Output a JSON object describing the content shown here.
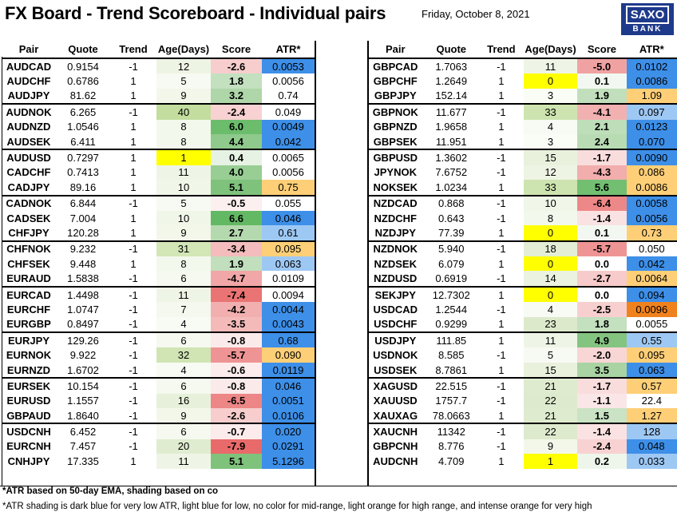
{
  "header": {
    "title": "FX Board - Trend Scoreboard - Individual pairs",
    "date": "Friday, October 8, 2021",
    "logo_line1": "SAXO",
    "logo_line2": "BANK"
  },
  "columns": [
    "Pair",
    "Quote",
    "Trend",
    "Age(Days)",
    "Score",
    "ATR*"
  ],
  "colors": {
    "age_yellow": "#ffff00",
    "atr_dark_blue": "#3d8fe8",
    "atr_light_blue": "#9ec8f4",
    "atr_light_orange": "#ffcf77",
    "atr_intense_orange": "#f0821d"
  },
  "left_table": [
    {
      "pair": "AUDCAD",
      "quote": "0.9154",
      "trend": "-1",
      "age": "12",
      "score": "-2.6",
      "atr": "0.0053",
      "age_shade": "#eef4e4",
      "score_shade": "#f7cdcd",
      "atr_shade": "#3d8fe8"
    },
    {
      "pair": "AUDCHF",
      "quote": "0.6786",
      "trend": "1",
      "age": "5",
      "score": "1.8",
      "atr": "0.0056",
      "age_shade": "#f7faf2",
      "score_shade": "#c3e0bf",
      "atr_shade": ""
    },
    {
      "pair": "AUDJPY",
      "quote": "81.62",
      "trend": "1",
      "age": "9",
      "score": "3.2",
      "atr": "0.74",
      "age_shade": "#f2f7ea",
      "score_shade": "#aed6a8",
      "atr_shade": ""
    },
    {
      "pair": "AUDNOK",
      "quote": "6.265",
      "trend": "-1",
      "age": "40",
      "score": "-2.4",
      "atr": "0.049",
      "age_shade": "#c2dd9e",
      "score_shade": "#f8d2d2",
      "atr_shade": ""
    },
    {
      "pair": "AUDNZD",
      "quote": "1.0546",
      "trend": "1",
      "age": "8",
      "score": "6.0",
      "atr": "0.0049",
      "age_shade": "#f3f8ec",
      "score_shade": "#6bbd6b",
      "atr_shade": "#3d8fe8"
    },
    {
      "pair": "AUDSEK",
      "quote": "6.411",
      "trend": "1",
      "age": "8",
      "score": "4.4",
      "atr": "0.042",
      "age_shade": "#f3f8ec",
      "score_shade": "#8fc98c",
      "atr_shade": "#3d8fe8"
    },
    {
      "pair": "AUDUSD",
      "quote": "0.7297",
      "trend": "1",
      "age": "1",
      "score": "0.4",
      "atr": "0.0065",
      "age_shade": "#ffff00",
      "score_shade": "#e6f2e3",
      "atr_shade": ""
    },
    {
      "pair": "CADCHF",
      "quote": "0.7413",
      "trend": "1",
      "age": "11",
      "score": "4.0",
      "atr": "0.0056",
      "age_shade": "#eff5e6",
      "score_shade": "#98ce94",
      "atr_shade": ""
    },
    {
      "pair": "CADJPY",
      "quote": "89.16",
      "trend": "1",
      "age": "10",
      "score": "5.1",
      "atr": "0.75",
      "age_shade": "#f0f6e8",
      "score_shade": "#7fc27c",
      "atr_shade": "#ffcf77"
    },
    {
      "pair": "CADNOK",
      "quote": "6.844",
      "trend": "-1",
      "age": "5",
      "score": "-0.5",
      "atr": "0.055",
      "age_shade": "#f7faf2",
      "score_shade": "#fcefef",
      "atr_shade": ""
    },
    {
      "pair": "CADSEK",
      "quote": "7.004",
      "trend": "1",
      "age": "10",
      "score": "6.6",
      "atr": "0.046",
      "age_shade": "#f0f6e8",
      "score_shade": "#63b963",
      "atr_shade": "#3d8fe8"
    },
    {
      "pair": "CHFJPY",
      "quote": "120.28",
      "trend": "1",
      "age": "9",
      "score": "2.7",
      "atr": "0.61",
      "age_shade": "#f2f7ea",
      "score_shade": "#b4d9ae",
      "atr_shade": "#9ec8f4"
    },
    {
      "pair": "CHFNOK",
      "quote": "9.232",
      "trend": "-1",
      "age": "31",
      "score": "-3.4",
      "atr": "0.095",
      "age_shade": "#d2e6b6",
      "score_shade": "#f4bcbc",
      "atr_shade": "#ffcf77"
    },
    {
      "pair": "CHFSEK",
      "quote": "9.448",
      "trend": "1",
      "age": "8",
      "score": "1.9",
      "atr": "0.063",
      "age_shade": "#f3f8ec",
      "score_shade": "#c1dfbc",
      "atr_shade": "#9ec8f4"
    },
    {
      "pair": "EURAUD",
      "quote": "1.5838",
      "trend": "-1",
      "age": "6",
      "score": "-4.7",
      "atr": "0.0109",
      "age_shade": "#f5f9ef",
      "score_shade": "#f1a7a7",
      "atr_shade": ""
    },
    {
      "pair": "EURCAD",
      "quote": "1.4498",
      "trend": "-1",
      "age": "11",
      "score": "-7.4",
      "atr": "0.0094",
      "age_shade": "#eff5e6",
      "score_shade": "#ea7474",
      "atr_shade": ""
    },
    {
      "pair": "EURCHF",
      "quote": "1.0747",
      "trend": "-1",
      "age": "7",
      "score": "-4.2",
      "atr": "0.0044",
      "age_shade": "#f4f8ee",
      "score_shade": "#f2afaf",
      "atr_shade": "#3d8fe8"
    },
    {
      "pair": "EURGBP",
      "quote": "0.8497",
      "trend": "-1",
      "age": "4",
      "score": "-3.5",
      "atr": "0.0043",
      "age_shade": "#f8fbf4",
      "score_shade": "#f4baba",
      "atr_shade": "#3d8fe8"
    },
    {
      "pair": "EURJPY",
      "quote": "129.26",
      "trend": "-1",
      "age": "6",
      "score": "-0.8",
      "atr": "0.68",
      "age_shade": "#f5f9ef",
      "score_shade": "#fbeaea",
      "atr_shade": "#3d8fe8"
    },
    {
      "pair": "EURNOK",
      "quote": "9.922",
      "trend": "-1",
      "age": "32",
      "score": "-5.7",
      "atr": "0.090",
      "age_shade": "#d0e5b3",
      "score_shade": "#ef9494",
      "atr_shade": "#ffcf77"
    },
    {
      "pair": "EURNZD",
      "quote": "1.6702",
      "trend": "-1",
      "age": "4",
      "score": "-0.6",
      "atr": "0.0119",
      "age_shade": "#f8fbf4",
      "score_shade": "#fcecec",
      "atr_shade": "#3d8fe8"
    },
    {
      "pair": "EURSEK",
      "quote": "10.154",
      "trend": "-1",
      "age": "6",
      "score": "-0.8",
      "atr": "0.046",
      "age_shade": "#f5f9ef",
      "score_shade": "#fbeaea",
      "atr_shade": "#3d8fe8"
    },
    {
      "pair": "EURUSD",
      "quote": "1.1557",
      "trend": "-1",
      "age": "16",
      "score": "-6.5",
      "atr": "0.0051",
      "age_shade": "#e7f0da",
      "score_shade": "#ed8686",
      "atr_shade": "#3d8fe8"
    },
    {
      "pair": "GBPAUD",
      "quote": "1.8640",
      "trend": "-1",
      "age": "9",
      "score": "-2.6",
      "atr": "0.0106",
      "age_shade": "#f2f7ea",
      "score_shade": "#f7cdcd",
      "atr_shade": "#3d8fe8"
    },
    {
      "pair": "USDCNH",
      "quote": "6.452",
      "trend": "-1",
      "age": "6",
      "score": "-0.7",
      "atr": "0.020",
      "age_shade": "#f5f9ef",
      "score_shade": "#fbebeb",
      "atr_shade": "#3d8fe8"
    },
    {
      "pair": "EURCNH",
      "quote": "7.457",
      "trend": "-1",
      "age": "20",
      "score": "-7.9",
      "atr": "0.0291",
      "age_shade": "#e0ecd0",
      "score_shade": "#e96a6a",
      "atr_shade": "#3d8fe8"
    },
    {
      "pair": "CNHJPY",
      "quote": "17.335",
      "trend": "1",
      "age": "11",
      "score": "5.1",
      "atr": "5.1296",
      "age_shade": "#eff5e6",
      "score_shade": "#7fc27c",
      "atr_shade": "#3d8fe8"
    }
  ],
  "right_table": [
    {
      "pair": "GBPCAD",
      "quote": "1.7063",
      "trend": "-1",
      "age": "11",
      "score": "-5.0",
      "atr": "0.0102",
      "age_shade": "#eff5e6",
      "score_shade": "#f0a2a2",
      "atr_shade": "#3d8fe8"
    },
    {
      "pair": "GBPCHF",
      "quote": "1.2649",
      "trend": "1",
      "age": "0",
      "score": "0.1",
      "atr": "0.0086",
      "age_shade": "#ffff00",
      "score_shade": "#f2f8f1",
      "atr_shade": "#3d8fe8"
    },
    {
      "pair": "GBPJPY",
      "quote": "152.14",
      "trend": "1",
      "age": "3",
      "score": "1.9",
      "atr": "1.09",
      "age_shade": "#fafcf6",
      "score_shade": "#c1dfbc",
      "atr_shade": "#ffcf77"
    },
    {
      "pair": "GBPNOK",
      "quote": "11.677",
      "trend": "-1",
      "age": "33",
      "score": "-4.1",
      "atr": "0.097",
      "age_shade": "#cee4b0",
      "score_shade": "#f2b1b1",
      "atr_shade": "#9ec8f4"
    },
    {
      "pair": "GBPNZD",
      "quote": "1.9658",
      "trend": "1",
      "age": "4",
      "score": "2.1",
      "atr": "0.0123",
      "age_shade": "#f8fbf4",
      "score_shade": "#bddeb8",
      "atr_shade": "#3d8fe8"
    },
    {
      "pair": "GBPSEK",
      "quote": "11.951",
      "trend": "1",
      "age": "3",
      "score": "2.4",
      "atr": "0.070",
      "age_shade": "#fafcf6",
      "score_shade": "#b8dbb3",
      "atr_shade": "#3d8fe8"
    },
    {
      "pair": "GBPUSD",
      "quote": "1.3602",
      "trend": "-1",
      "age": "15",
      "score": "-1.7",
      "atr": "0.0090",
      "age_shade": "#e9f1dd",
      "score_shade": "#f9dddd",
      "atr_shade": "#3d8fe8"
    },
    {
      "pair": "JPYNOK",
      "quote": "7.6752",
      "trend": "-1",
      "age": "12",
      "score": "-4.3",
      "atr": "0.086",
      "age_shade": "#eef4e4",
      "score_shade": "#f2adad",
      "atr_shade": "#ffcf77"
    },
    {
      "pair": "NOKSEK",
      "quote": "1.0234",
      "trend": "1",
      "age": "33",
      "score": "5.6",
      "atr": "0.0086",
      "age_shade": "#cee4b0",
      "score_shade": "#72bf72",
      "atr_shade": "#ffcf77"
    },
    {
      "pair": "NZDCAD",
      "quote": "0.868",
      "trend": "-1",
      "age": "10",
      "score": "-6.4",
      "atr": "0.0058",
      "age_shade": "#f0f6e8",
      "score_shade": "#ed8888",
      "atr_shade": "#3d8fe8"
    },
    {
      "pair": "NZDCHF",
      "quote": "0.643",
      "trend": "-1",
      "age": "8",
      "score": "-1.4",
      "atr": "0.0056",
      "age_shade": "#f3f8ec",
      "score_shade": "#fae2e2",
      "atr_shade": "#3d8fe8"
    },
    {
      "pair": "NZDJPY",
      "quote": "77.39",
      "trend": "1",
      "age": "0",
      "score": "0.1",
      "atr": "0.73",
      "age_shade": "#ffff00",
      "score_shade": "#f2f8f1",
      "atr_shade": "#ffcf77"
    },
    {
      "pair": "NZDNOK",
      "quote": "5.940",
      "trend": "-1",
      "age": "18",
      "score": "-5.7",
      "atr": "0.050",
      "age_shade": "#e4eed6",
      "score_shade": "#ef9494",
      "atr_shade": ""
    },
    {
      "pair": "NZDSEK",
      "quote": "6.079",
      "trend": "1",
      "age": "0",
      "score": "0.0",
      "atr": "0.042",
      "age_shade": "#ffff00",
      "score_shade": "",
      "atr_shade": "#3d8fe8"
    },
    {
      "pair": "NZDUSD",
      "quote": "0.6919",
      "trend": "-1",
      "age": "14",
      "score": "-2.7",
      "atr": "0.0064",
      "age_shade": "#ebf2e0",
      "score_shade": "#f7cbcb",
      "atr_shade": "#ffcf77"
    },
    {
      "pair": "SEKJPY",
      "quote": "12.7302",
      "trend": "1",
      "age": "0",
      "score": "0.0",
      "atr": "0.094",
      "age_shade": "#ffff00",
      "score_shade": "",
      "atr_shade": "#3d8fe8"
    },
    {
      "pair": "USDCAD",
      "quote": "1.2544",
      "trend": "-1",
      "age": "4",
      "score": "-2.5",
      "atr": "0.0096",
      "age_shade": "#f8fbf4",
      "score_shade": "#f8cfcf",
      "atr_shade": "#f0821d"
    },
    {
      "pair": "USDCHF",
      "quote": "0.9299",
      "trend": "1",
      "age": "23",
      "score": "1.8",
      "atr": "0.0055",
      "age_shade": "#dde9cb",
      "score_shade": "#c3e0bf",
      "atr_shade": ""
    },
    {
      "pair": "USDJPY",
      "quote": "111.85",
      "trend": "1",
      "age": "11",
      "score": "4.9",
      "atr": "0.55",
      "age_shade": "#eff5e6",
      "score_shade": "#84c481",
      "atr_shade": "#9ec8f4"
    },
    {
      "pair": "USDNOK",
      "quote": "8.585",
      "trend": "-1",
      "age": "5",
      "score": "-2.0",
      "atr": "0.095",
      "age_shade": "#f7faf2",
      "score_shade": "#f8d6d6",
      "atr_shade": "#ffcf77"
    },
    {
      "pair": "USDSEK",
      "quote": "8.7861",
      "trend": "1",
      "age": "15",
      "score": "3.5",
      "atr": "0.063",
      "age_shade": "#e9f1dd",
      "score_shade": "#a9d3a3",
      "atr_shade": "#3d8fe8"
    },
    {
      "pair": "XAGUSD",
      "quote": "22.515",
      "trend": "-1",
      "age": "21",
      "score": "-1.7",
      "atr": "0.57",
      "age_shade": "#dfebce",
      "score_shade": "#f9dddd",
      "atr_shade": "#ffcf77"
    },
    {
      "pair": "XAUUSD",
      "quote": "1757.7",
      "trend": "-1",
      "age": "22",
      "score": "-1.1",
      "atr": "22.4",
      "age_shade": "#deeacd",
      "score_shade": "#fae6e6",
      "atr_shade": ""
    },
    {
      "pair": "XAUXAG",
      "quote": "78.0663",
      "trend": "1",
      "age": "21",
      "score": "1.5",
      "atr": "1.27",
      "age_shade": "#dfebce",
      "score_shade": "#c9e3c4",
      "atr_shade": "#ffcf77"
    },
    {
      "pair": "XAUCNH",
      "quote": "11342",
      "trend": "-1",
      "age": "22",
      "score": "-1.4",
      "atr": "128",
      "age_shade": "#deeacd",
      "score_shade": "#fae2e2",
      "atr_shade": "#9ec8f4"
    },
    {
      "pair": "GBPCNH",
      "quote": "8.776",
      "trend": "-1",
      "age": "9",
      "score": "-2.4",
      "atr": "0.048",
      "age_shade": "#f2f7ea",
      "score_shade": "#f8d2d2",
      "atr_shade": "#3d8fe8"
    },
    {
      "pair": "AUDCNH",
      "quote": "4.709",
      "trend": "1",
      "age": "1",
      "score": "0.2",
      "atr": "0.033",
      "age_shade": "#ffff00",
      "score_shade": "#eef6ec",
      "atr_shade": "#9ec8f4"
    }
  ],
  "footnotes": {
    "note1": "*ATR based on 50-day EMA, shading based on co",
    "note2": "*ATR shading is dark blue for very low ATR, light blue for low, no color for mid-range, light orange for high range, and intense orange for very high"
  }
}
